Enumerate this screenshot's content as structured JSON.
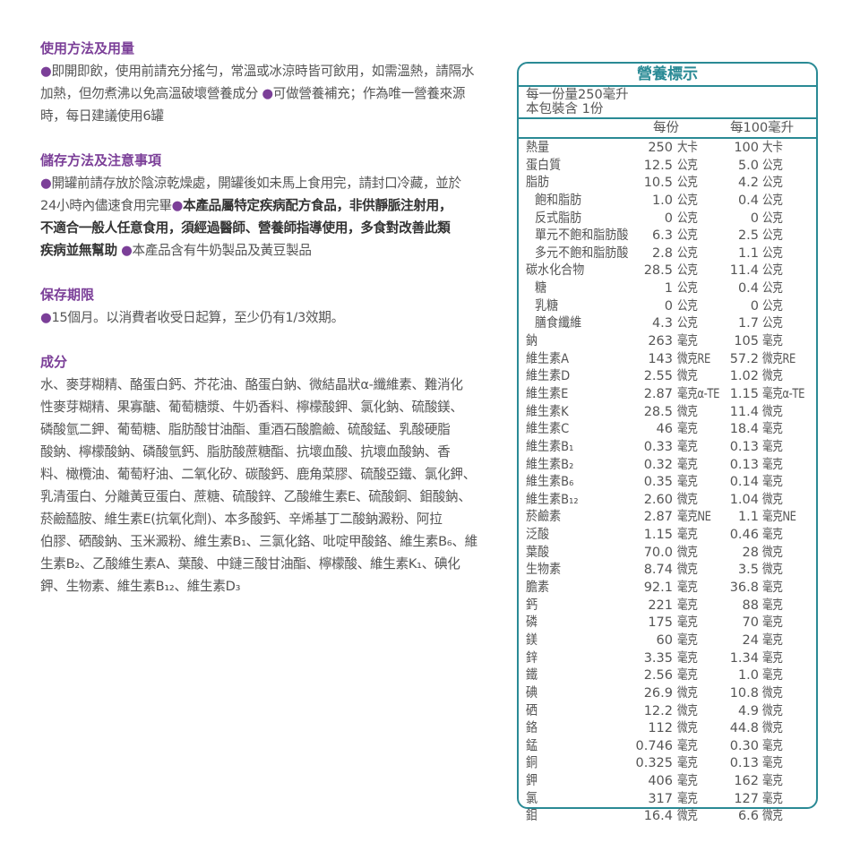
{
  "colors": {
    "heading": "#7b3f98",
    "table_border": "#2a8a95",
    "text": "#555555"
  },
  "sections": [
    {
      "heading": "使用方法及用量",
      "lines": [
        [
          {
            "t": "●",
            "bullet": true
          },
          {
            "t": "即開即飲，使用前請充分搖勻，常溫或冰涼時皆可飲用，如需溫熱，請隔水"
          }
        ],
        [
          {
            "t": "加熱，但勿煮沸以免高溫破壞營養成分 "
          },
          {
            "t": "●",
            "bullet": true
          },
          {
            "t": "可做營養補充；作為唯一營養來源"
          }
        ],
        [
          {
            "t": "時，每日建議使用6罐"
          }
        ]
      ]
    },
    {
      "heading": "儲存方法及注意事項",
      "lines": [
        [
          {
            "t": "●",
            "bullet": true
          },
          {
            "t": "開罐前請存放於陰涼乾燥處，開罐後如未馬上食用完，請封口冷藏，並於"
          }
        ],
        [
          {
            "t": "24小時內儘速食用完畢"
          },
          {
            "t": "●",
            "bullet": true
          },
          {
            "t": "本產品屬特定疾病配方食品，非供靜脈注射用，",
            "b": true
          }
        ],
        [
          {
            "t": "不適合一般人任意食用，須經過醫師、營養師指導使用，多食對改善此類",
            "b": true
          }
        ],
        [
          {
            "t": "疾病並無幫助",
            "b": true
          },
          {
            "t": " "
          },
          {
            "t": "●",
            "bullet": true
          },
          {
            "t": "本產品含有牛奶製品及黃豆製品"
          }
        ]
      ]
    },
    {
      "heading": "保存期限",
      "lines": [
        [
          {
            "t": " ●",
            "bullet": true
          },
          {
            "t": "15個月。以消費者收受日起算，至少仍有1/3效期。"
          }
        ]
      ]
    },
    {
      "heading": "成分",
      "lines": [
        [
          {
            "t": "水、麥芽糊精、酪蛋白鈣、芥花油、酪蛋白鈉、微結晶狀α-纖維素、難消化"
          }
        ],
        [
          {
            "t": "性麥芽糊精、果寡醣、葡萄糖漿、牛奶香料、檸檬酸鉀、氯化鈉、硫酸鎂、"
          }
        ],
        [
          {
            "t": "磷酸氫二鉀、葡萄糖、脂肪酸甘油酯、重酒石酸膽鹼、硫酸錳、乳酸硬脂"
          }
        ],
        [
          {
            "t": "酸鈉、檸檬酸鈉、磷酸氫鈣、脂肪酸蔗糖酯、抗壞血酸、抗壞血酸鈉、香"
          }
        ],
        [
          {
            "t": "料、橄欖油、葡萄籽油、二氧化矽、碳酸鈣、鹿角菜膠、硫酸亞鐵、氯化鉀、"
          }
        ],
        [
          {
            "t": "乳清蛋白、分離黃豆蛋白、蔗糖、硫酸鋅、乙酸維生素E、硫酸銅、鉬酸鈉、"
          }
        ],
        [
          {
            "t": "菸鹼醯胺、維生素E(抗氧化劑)、本多酸鈣、辛烯基丁二酸鈉澱粉、阿拉"
          }
        ],
        [
          {
            "t": "伯膠、硒酸鈉、玉米澱粉、維生素B₁、三氯化鉻、吡啶甲酸鉻、維生素B₆、維"
          }
        ],
        [
          {
            "t": "生素B₂、乙酸維生素A、葉酸、中鏈三酸甘油酯、檸檬酸、維生素K₁、碘化"
          }
        ],
        [
          {
            "t": "鉀、生物素、維生素B₁₂、維生素D₃"
          }
        ]
      ]
    }
  ],
  "nutrition": {
    "title": "營養標示",
    "serving_size": "每一份量250毫升",
    "servings": "本包裝含 1份",
    "col_per_serving": "每份",
    "col_per_100": "每100毫升",
    "rows": [
      {
        "name": "熱量",
        "v1": "250",
        "u1": "大卡",
        "v2": "100",
        "u2": "大卡"
      },
      {
        "name": "蛋白質",
        "v1": "12.5",
        "u1": "公克",
        "v2": "5.0",
        "u2": "公克"
      },
      {
        "name": "脂肪",
        "v1": "10.5",
        "u1": "公克",
        "v2": "4.2",
        "u2": "公克"
      },
      {
        "name": "飽和脂肪",
        "v1": "1.0",
        "u1": "公克",
        "v2": "0.4",
        "u2": "公克",
        "indent": true
      },
      {
        "name": "反式脂肪",
        "v1": "0",
        "u1": "公克",
        "v2": "0",
        "u2": "公克",
        "indent": true
      },
      {
        "name": "單元不飽和脂肪酸",
        "v1": "6.3",
        "u1": "公克",
        "v2": "2.5",
        "u2": "公克",
        "indent": true
      },
      {
        "name": "多元不飽和脂肪酸",
        "v1": "2.8",
        "u1": "公克",
        "v2": "1.1",
        "u2": "公克",
        "indent": true
      },
      {
        "name": "碳水化合物",
        "v1": "28.5",
        "u1": "公克",
        "v2": "11.4",
        "u2": "公克"
      },
      {
        "name": "糖",
        "v1": "1",
        "u1": "公克",
        "v2": "0.4",
        "u2": "公克",
        "indent": true
      },
      {
        "name": "乳糖",
        "v1": "0",
        "u1": "公克",
        "v2": "0",
        "u2": "公克",
        "indent": true
      },
      {
        "name": "膳食纖維",
        "v1": "4.3",
        "u1": "公克",
        "v2": "1.7",
        "u2": "公克",
        "indent": true
      },
      {
        "name": "鈉",
        "v1": "263",
        "u1": "毫克",
        "v2": "105",
        "u2": "毫克"
      },
      {
        "name": "維生素A",
        "v1": "143",
        "u1": "微克RE",
        "v2": "57.2",
        "u2": "微克RE"
      },
      {
        "name": "維生素D",
        "v1": "2.55",
        "u1": "微克",
        "v2": "1.02",
        "u2": "微克"
      },
      {
        "name": "維生素E",
        "v1": "2.87",
        "u1": "毫克α-TE",
        "v2": "1.15",
        "u2": "毫克α-TE"
      },
      {
        "name": "維生素K",
        "v1": "28.5",
        "u1": "微克",
        "v2": "11.4",
        "u2": "微克"
      },
      {
        "name": "維生素C",
        "v1": "46",
        "u1": "毫克",
        "v2": "18.4",
        "u2": "毫克"
      },
      {
        "name": "維生素B₁",
        "v1": "0.33",
        "u1": "毫克",
        "v2": "0.13",
        "u2": "毫克"
      },
      {
        "name": "維生素B₂",
        "v1": "0.32",
        "u1": "毫克",
        "v2": "0.13",
        "u2": "毫克"
      },
      {
        "name": "維生素B₆",
        "v1": "0.35",
        "u1": "毫克",
        "v2": "0.14",
        "u2": "毫克"
      },
      {
        "name": "維生素B₁₂",
        "v1": "2.60",
        "u1": "微克",
        "v2": "1.04",
        "u2": "微克"
      },
      {
        "name": "菸鹼素",
        "v1": "2.87",
        "u1": "毫克NE",
        "v2": "1.1",
        "u2": "毫克NE"
      },
      {
        "name": "泛酸",
        "v1": "1.15",
        "u1": "毫克",
        "v2": "0.46",
        "u2": "毫克"
      },
      {
        "name": "葉酸",
        "v1": "70.0",
        "u1": "微克",
        "v2": "28",
        "u2": "微克"
      },
      {
        "name": "生物素",
        "v1": "8.74",
        "u1": "微克",
        "v2": "3.5",
        "u2": "微克"
      },
      {
        "name": "膽素",
        "v1": "92.1",
        "u1": "毫克",
        "v2": "36.8",
        "u2": "毫克"
      },
      {
        "name": "鈣",
        "v1": "221",
        "u1": "毫克",
        "v2": "88",
        "u2": "毫克"
      },
      {
        "name": "磷",
        "v1": "175",
        "u1": "毫克",
        "v2": "70",
        "u2": "毫克"
      },
      {
        "name": "鎂",
        "v1": "60",
        "u1": "毫克",
        "v2": "24",
        "u2": "毫克"
      },
      {
        "name": "鋅",
        "v1": "3.35",
        "u1": "毫克",
        "v2": "1.34",
        "u2": "毫克"
      },
      {
        "name": "鐵",
        "v1": "2.56",
        "u1": "毫克",
        "v2": "1.0",
        "u2": "毫克"
      },
      {
        "name": "碘",
        "v1": "26.9",
        "u1": "微克",
        "v2": "10.8",
        "u2": "微克"
      },
      {
        "name": "硒",
        "v1": "12.2",
        "u1": "微克",
        "v2": "4.9",
        "u2": "微克"
      },
      {
        "name": "鉻",
        "v1": "112",
        "u1": "微克",
        "v2": "44.8",
        "u2": "微克"
      },
      {
        "name": "錳",
        "v1": "0.746",
        "u1": "毫克",
        "v2": "0.30",
        "u2": "毫克"
      },
      {
        "name": "銅",
        "v1": "0.325",
        "u1": "毫克",
        "v2": "0.13",
        "u2": "毫克"
      },
      {
        "name": "鉀",
        "v1": "406",
        "u1": "毫克",
        "v2": "162",
        "u2": "毫克"
      },
      {
        "name": "氯",
        "v1": "317",
        "u1": "毫克",
        "v2": "127",
        "u2": "毫克"
      },
      {
        "name": "鉬",
        "v1": "16.4",
        "u1": "微克",
        "v2": "6.6",
        "u2": "微克"
      }
    ]
  }
}
